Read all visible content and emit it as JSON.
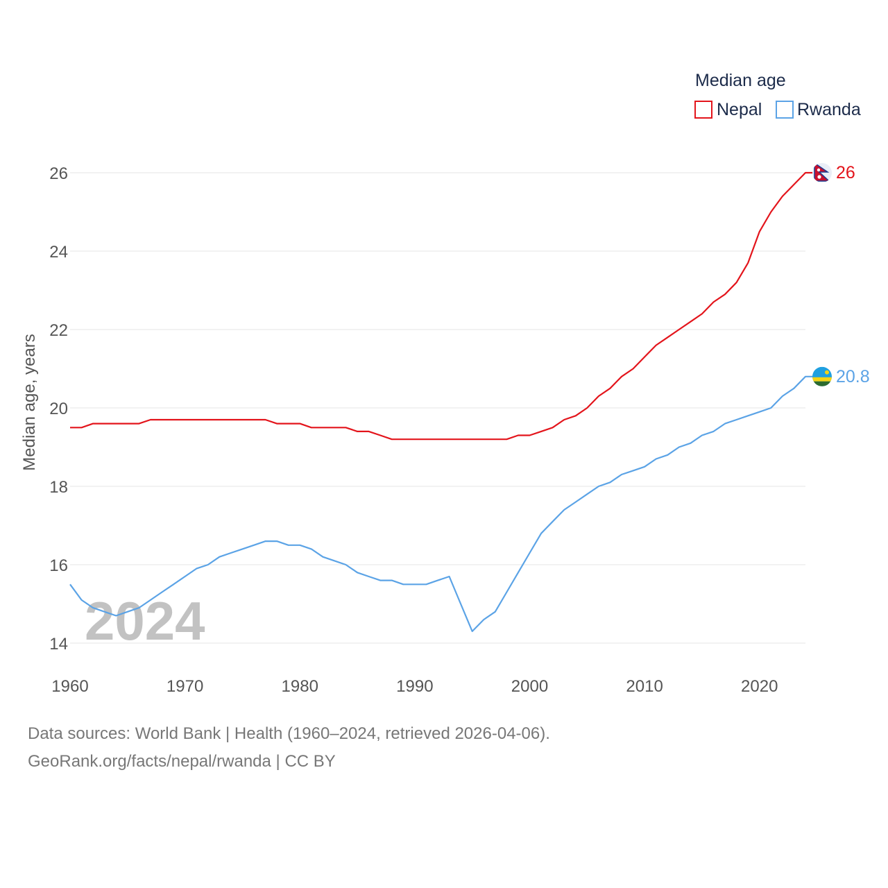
{
  "colors": {
    "nepal": "#e3141b",
    "rwanda": "#5ba3e6",
    "grid": "#e6e6e6"
  },
  "chart_data": {
    "type": "line",
    "title": "",
    "xlabel": "",
    "ylabel": "Median age, years",
    "xlim": [
      1960,
      2024
    ],
    "ylim": [
      14,
      26
    ],
    "x_ticks": [
      1960,
      1970,
      1980,
      1990,
      2000,
      2010,
      2020
    ],
    "y_ticks": [
      14,
      16,
      18,
      20,
      22,
      24,
      26
    ],
    "legend_title": "Median age",
    "legend_placement": "top-right",
    "year_label": "2024",
    "x": [
      1960,
      1961,
      1962,
      1963,
      1964,
      1965,
      1966,
      1967,
      1968,
      1969,
      1970,
      1971,
      1972,
      1973,
      1974,
      1975,
      1976,
      1977,
      1978,
      1979,
      1980,
      1981,
      1982,
      1983,
      1984,
      1985,
      1986,
      1987,
      1988,
      1989,
      1990,
      1991,
      1992,
      1993,
      1994,
      1995,
      1996,
      1997,
      1998,
      1999,
      2000,
      2001,
      2002,
      2003,
      2004,
      2005,
      2006,
      2007,
      2008,
      2009,
      2010,
      2011,
      2012,
      2013,
      2014,
      2015,
      2016,
      2017,
      2018,
      2019,
      2020,
      2021,
      2022,
      2023,
      2024
    ],
    "series": [
      {
        "name": "Nepal",
        "color": "#e3141b",
        "end_label": "26",
        "flag_icon": "nepal-flag-icon",
        "values": [
          19.5,
          19.5,
          19.6,
          19.6,
          19.6,
          19.6,
          19.6,
          19.7,
          19.7,
          19.7,
          19.7,
          19.7,
          19.7,
          19.7,
          19.7,
          19.7,
          19.7,
          19.7,
          19.6,
          19.6,
          19.6,
          19.5,
          19.5,
          19.5,
          19.5,
          19.4,
          19.4,
          19.3,
          19.2,
          19.2,
          19.2,
          19.2,
          19.2,
          19.2,
          19.2,
          19.2,
          19.2,
          19.2,
          19.2,
          19.3,
          19.3,
          19.4,
          19.5,
          19.7,
          19.8,
          20.0,
          20.3,
          20.5,
          20.8,
          21.0,
          21.3,
          21.6,
          21.8,
          22.0,
          22.2,
          22.4,
          22.7,
          22.9,
          23.2,
          23.7,
          24.5,
          25.0,
          25.4,
          25.7,
          26.0
        ]
      },
      {
        "name": "Rwanda",
        "color": "#5ba3e6",
        "end_label": "20.8",
        "flag_icon": "rwanda-flag-icon",
        "values": [
          15.5,
          15.1,
          14.9,
          14.8,
          14.7,
          14.8,
          14.9,
          15.1,
          15.3,
          15.5,
          15.7,
          15.9,
          16.0,
          16.2,
          16.3,
          16.4,
          16.5,
          16.6,
          16.6,
          16.5,
          16.5,
          16.4,
          16.2,
          16.1,
          16.0,
          15.8,
          15.7,
          15.6,
          15.6,
          15.5,
          15.5,
          15.5,
          15.6,
          15.7,
          15.0,
          14.3,
          14.6,
          14.8,
          15.3,
          15.8,
          16.3,
          16.8,
          17.1,
          17.4,
          17.6,
          17.8,
          18.0,
          18.1,
          18.3,
          18.4,
          18.5,
          18.7,
          18.8,
          19.0,
          19.1,
          19.3,
          19.4,
          19.6,
          19.7,
          19.8,
          19.9,
          20.0,
          20.3,
          20.5,
          20.8
        ]
      }
    ]
  },
  "footer": {
    "line1": "Data sources: World Bank | Health (1960–2024, retrieved 2026-04-06).",
    "line2": "GeoRank.org/facts/nepal/rwanda | CC BY"
  }
}
